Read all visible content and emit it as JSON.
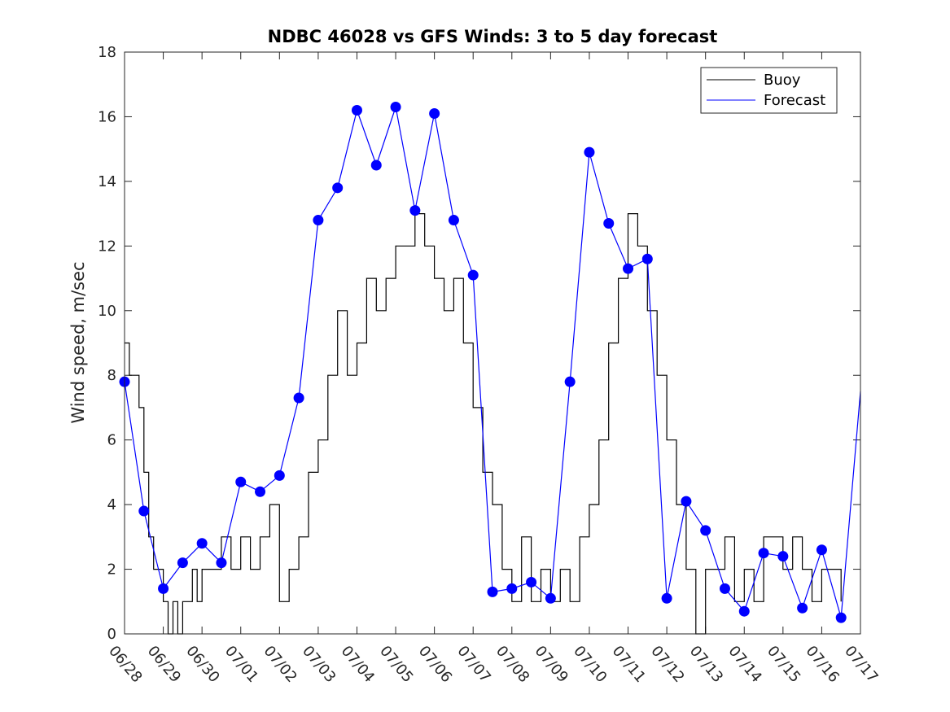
{
  "chart_data": {
    "type": "line",
    "title": "NDBC 46028 vs GFS Winds: 3 to 5 day forecast",
    "xlabel": "",
    "ylabel": "Wind speed, m/sec",
    "xlim": [
      "06/28",
      "07/17"
    ],
    "ylim": [
      0,
      18
    ],
    "x_tick_labels": [
      "06/28",
      "06/29",
      "06/30",
      "07/01",
      "07/02",
      "07/03",
      "07/04",
      "07/05",
      "07/06",
      "07/07",
      "07/08",
      "07/09",
      "07/10",
      "07/11",
      "07/12",
      "07/13",
      "07/14",
      "07/15",
      "07/16",
      "07/17"
    ],
    "y_ticks": [
      0,
      2,
      4,
      6,
      8,
      10,
      12,
      14,
      16,
      18
    ],
    "legend": {
      "position": "top-right",
      "entries": [
        "Buoy",
        "Forecast"
      ]
    },
    "colors": {
      "buoy": "#000000",
      "forecast": "#0000ff",
      "markers": "#0000ff",
      "axes": "#262626"
    },
    "series": [
      {
        "name": "Buoy",
        "x": [
          "06/28 00:00",
          "06/28 03:00",
          "06/28 06:00",
          "06/28 09:00",
          "06/28 12:00",
          "06/28 15:00",
          "06/28 18:00",
          "06/28 21:00",
          "06/29 00:00",
          "06/29 03:00",
          "06/29 06:00",
          "06/29 09:00",
          "06/29 12:00",
          "06/29 15:00",
          "06/29 18:00",
          "06/29 21:00",
          "06/30 00:00",
          "06/30 06:00",
          "06/30 12:00",
          "06/30 18:00",
          "07/01 00:00",
          "07/01 06:00",
          "07/01 12:00",
          "07/01 18:00",
          "07/02 00:00",
          "07/02 06:00",
          "07/02 12:00",
          "07/02 18:00",
          "07/03 00:00",
          "07/03 06:00",
          "07/03 12:00",
          "07/03 18:00",
          "07/04 00:00",
          "07/04 06:00",
          "07/04 12:00",
          "07/04 18:00",
          "07/05 00:00",
          "07/05 06:00",
          "07/05 12:00",
          "07/05 18:00",
          "07/06 00:00",
          "07/06 06:00",
          "07/06 12:00",
          "07/06 18:00",
          "07/07 00:00",
          "07/07 06:00",
          "07/07 12:00",
          "07/07 18:00",
          "07/08 00:00",
          "07/08 06:00",
          "07/08 12:00",
          "07/08 18:00",
          "07/09 00:00",
          "07/09 06:00",
          "07/09 12:00",
          "07/09 18:00",
          "07/10 00:00",
          "07/10 06:00",
          "07/10 12:00",
          "07/10 18:00",
          "07/11 00:00",
          "07/11 06:00",
          "07/11 12:00",
          "07/11 18:00",
          "07/12 00:00",
          "07/12 06:00",
          "07/12 12:00",
          "07/12 18:00",
          "07/13 00:00",
          "07/13 06:00",
          "07/13 12:00",
          "07/13 18:00",
          "07/14 00:00",
          "07/14 06:00",
          "07/14 12:00",
          "07/14 18:00",
          "07/15 00:00",
          "07/15 06:00",
          "07/15 12:00",
          "07/15 18:00",
          "07/16 00:00",
          "07/16 06:00",
          "07/16 12:00"
        ],
        "values": [
          9,
          8,
          8,
          7,
          5,
          3,
          2,
          2,
          1,
          0,
          1,
          0,
          1,
          1,
          2,
          1,
          2,
          2,
          3,
          2,
          3,
          2,
          3,
          4,
          1,
          2,
          3,
          5,
          6,
          8,
          10,
          8,
          9,
          11,
          10,
          11,
          12,
          12,
          13,
          12,
          11,
          10,
          11,
          9,
          7,
          5,
          4,
          2,
          1,
          3,
          1,
          2,
          1,
          2,
          1,
          3,
          4,
          6,
          9,
          11,
          13,
          12,
          10,
          8,
          6,
          4,
          2,
          0,
          2,
          2,
          3,
          1,
          2,
          1,
          3,
          3,
          2,
          3,
          2,
          1,
          2,
          2,
          1
        ]
      },
      {
        "name": "Forecast",
        "x": [
          "06/28 00:00",
          "06/28 12:00",
          "06/29 00:00",
          "06/29 12:00",
          "06/30 00:00",
          "06/30 12:00",
          "07/01 00:00",
          "07/01 12:00",
          "07/02 00:00",
          "07/02 12:00",
          "07/03 00:00",
          "07/03 12:00",
          "07/04 00:00",
          "07/04 12:00",
          "07/05 00:00",
          "07/05 12:00",
          "07/06 00:00",
          "07/06 12:00",
          "07/07 00:00",
          "07/07 12:00",
          "07/08 00:00",
          "07/08 12:00",
          "07/09 00:00",
          "07/09 12:00",
          "07/10 00:00",
          "07/10 12:00",
          "07/11 00:00",
          "07/11 12:00",
          "07/12 00:00",
          "07/12 12:00",
          "07/13 00:00",
          "07/13 12:00",
          "07/14 00:00",
          "07/14 12:00",
          "07/15 00:00",
          "07/15 12:00",
          "07/16 00:00",
          "07/16 12:00",
          "07/17 00:00"
        ],
        "values": [
          7.8,
          3.8,
          1.4,
          2.2,
          2.8,
          2.2,
          4.7,
          4.4,
          4.9,
          7.3,
          12.8,
          13.8,
          16.2,
          14.5,
          16.3,
          13.1,
          16.1,
          12.8,
          11.1,
          1.3,
          1.4,
          1.6,
          1.1,
          7.8,
          14.9,
          12.7,
          11.3,
          11.6,
          1.1,
          4.1,
          3.2,
          1.4,
          0.7,
          2.5,
          2.4,
          0.8,
          2.6,
          0.5,
          7.5
        ]
      }
    ],
    "markers": {
      "x": [
        "06/28 00:00",
        "06/28 12:00",
        "06/29 00:00",
        "06/29 12:00",
        "06/30 00:00",
        "06/30 12:00",
        "07/01 00:00",
        "07/01 12:00",
        "07/02 00:00",
        "07/02 12:00",
        "07/03 00:00",
        "07/03 12:00",
        "07/04 00:00",
        "07/04 12:00",
        "07/05 00:00",
        "07/05 12:00",
        "07/06 00:00",
        "07/06 12:00",
        "07/07 00:00",
        "07/07 12:00",
        "07/08 00:00",
        "07/08 12:00",
        "07/09 00:00",
        "07/09 12:00",
        "07/10 00:00",
        "07/10 12:00",
        "07/11 00:00",
        "07/11 12:00",
        "07/12 00:00",
        "07/12 12:00",
        "07/13 00:00",
        "07/13 12:00",
        "07/14 00:00",
        "07/14 12:00",
        "07/15 00:00",
        "07/15 12:00",
        "07/16 00:00",
        "07/16 12:00"
      ],
      "values": [
        7.8,
        3.8,
        1.4,
        2.2,
        2.8,
        2.2,
        4.7,
        4.4,
        4.9,
        7.3,
        12.8,
        13.8,
        16.2,
        14.5,
        16.3,
        13.1,
        16.1,
        12.8,
        11.1,
        1.3,
        1.4,
        1.6,
        1.1,
        7.8,
        14.9,
        12.7,
        11.3,
        11.6,
        1.1,
        4.1,
        3.2,
        1.4,
        0.7,
        2.5,
        2.4,
        0.8,
        2.6,
        0.5
      ]
    }
  }
}
